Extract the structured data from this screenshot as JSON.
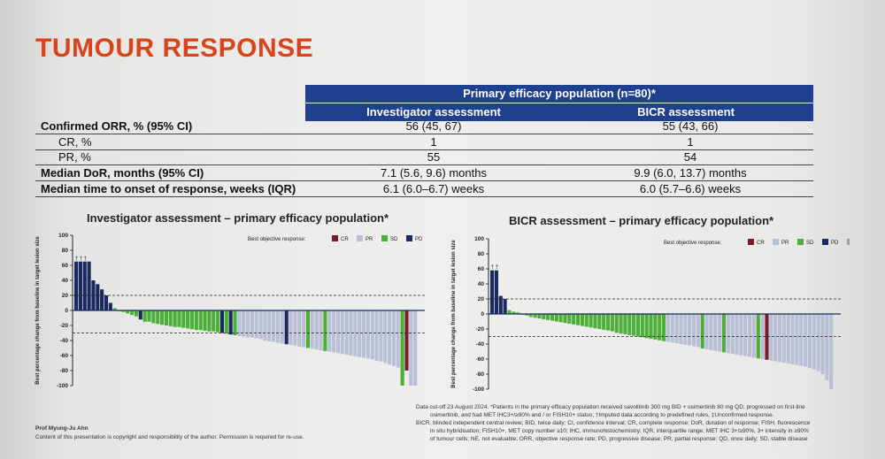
{
  "slide": {
    "title": "TUMOUR RESPONSE",
    "presenter": "Prof Myung-Ju Ahn",
    "copyright": "Content of this presentation is copyright and responsibility of the author. Permission is required for re-use."
  },
  "table": {
    "header": "Primary efficacy population (n=80)*",
    "col1": "Investigator assessment",
    "col2": "BICR assessment",
    "rows": [
      {
        "label": "Confirmed ORR, % (95% CI)",
        "v1": "56 (45, 67)",
        "v2": "55 (43, 66)"
      },
      {
        "label": "CR, %",
        "v1": "1",
        "v2": "1"
      },
      {
        "label": "PR, %",
        "v1": "55",
        "v2": "54"
      },
      {
        "label": "Median DoR, months (95% CI)",
        "v1": "7.1 (5.6, 9.6) months",
        "v2": "9.9 (6.0, 13.7) months"
      },
      {
        "label": "Median time to onset of response, weeks (IQR)",
        "v1": "6.1 (6.0–6.7) weeks",
        "v2": "6.0 (5.7–6.6) weeks"
      }
    ]
  },
  "colors": {
    "CR": "#7a1b2a",
    "PR": "#b9c0d6",
    "SD": "#4caf3a",
    "PD": "#1b2a5e",
    "NE": "#9aa0a8",
    "title": "#d9441b",
    "header": "#1f3f8f"
  },
  "footnote": [
    "Data cut-off 23 August 2024. *Patients in the primary efficacy population received savolitinib 300 mg BID + osimertinib 80 mg QD, progressed on first-line",
    "osimertinib, and had MET IHC3+/≥90% and / or FISH10+ status; †Imputed data according to predefined rules, ‡Unconfirmed response.",
    "BICR, blinded independent central review; BID, twice daily; CI, confidence interval; CR, complete response; DoR, duration of response; FISH, fluorescence",
    "in situ hybridisation; FISH10+, MET copy number ≥10; IHC, immunohistochemistry; IQR, interquartile range; MET IHC 3+/≥90%, 3+ intensity in ≥90%",
    "of tumour cells; NE, not evaluable; ORR, objective response rate; PD, progressive disease; PR, partial response; QD, once daily; SD, stable disease"
  ],
  "chart_data": [
    {
      "type": "bar",
      "title": "Investigator assessment – primary efficacy population*",
      "ylabel": "Best percentage change from baseline in target lesion size",
      "ylim": [
        -100,
        100
      ],
      "yticks": [
        100,
        80,
        60,
        40,
        20,
        0,
        -20,
        -40,
        -60,
        -80,
        -100
      ],
      "reference_lines": [
        20,
        -30
      ],
      "legend_title": "Best objective response:",
      "legend": [
        "CR",
        "PR",
        "SD",
        "PD"
      ],
      "values": [
        65,
        65,
        65,
        65,
        40,
        35,
        28,
        20,
        10,
        3,
        0,
        -2,
        -4,
        -6,
        -8,
        -12,
        -15,
        -15,
        -17,
        -18,
        -19,
        -20,
        -21,
        -22,
        -22,
        -23,
        -24,
        -25,
        -26,
        -26,
        -27,
        -28,
        -28,
        -29,
        -30,
        -31,
        -32,
        -33,
        -34,
        -35,
        -36,
        -36,
        -37,
        -38,
        -40,
        -41,
        -42,
        -43,
        -44,
        -45,
        -46,
        -47,
        -48,
        -49,
        -50,
        -51,
        -52,
        -53,
        -54,
        -55,
        -56,
        -57,
        -58,
        -59,
        -60,
        -61,
        -62,
        -63,
        -64,
        -65,
        -67,
        -68,
        -70,
        -72,
        -74,
        -76,
        -100,
        -80,
        -100,
        -100
      ],
      "categories": [
        "PD",
        "PD",
        "PD",
        "PD",
        "PD",
        "PD",
        "PD",
        "PD",
        "PD",
        "SD",
        "SD",
        "SD",
        "SD",
        "SD",
        "SD",
        "PD",
        "SD",
        "SD",
        "SD",
        "SD",
        "SD",
        "SD",
        "SD",
        "SD",
        "SD",
        "SD",
        "SD",
        "SD",
        "SD",
        "SD",
        "SD",
        "SD",
        "SD",
        "SD",
        "PD",
        "SD",
        "PD",
        "SD",
        "PR",
        "PR",
        "PR",
        "PR",
        "PR",
        "PR",
        "PR",
        "PR",
        "PR",
        "PR",
        "PR",
        "PD",
        "PR",
        "PR",
        "PR",
        "PR",
        "SD",
        "PR",
        "PR",
        "PR",
        "SD",
        "PR",
        "PR",
        "PR",
        "PR",
        "PR",
        "PR",
        "PR",
        "PR",
        "PR",
        "PR",
        "PR",
        "PR",
        "PR",
        "PR",
        "PR",
        "PR",
        "PR",
        "SD",
        "CR",
        "PR",
        "PR"
      ],
      "markers": [
        "†",
        "†",
        "†",
        "‡",
        "‡",
        "‡",
        "‡"
      ]
    },
    {
      "type": "bar",
      "title": "BICR assessment – primary efficacy population*",
      "ylabel": "Best percentage change from baseline in target lesion size",
      "ylim": [
        -100,
        100
      ],
      "yticks": [
        100,
        80,
        60,
        40,
        20,
        0,
        -20,
        -40,
        -60,
        -80,
        -100
      ],
      "reference_lines": [
        20,
        -30
      ],
      "legend_title": "Best objective response:",
      "legend": [
        "CR",
        "PR",
        "SD",
        "PD",
        "NE"
      ],
      "values": [
        58,
        58,
        24,
        20,
        5,
        3,
        2,
        -1,
        -2,
        -4,
        -5,
        -6,
        -7,
        -8,
        -9,
        -10,
        -11,
        -12,
        -13,
        -14,
        -15,
        -16,
        -17,
        -18,
        -19,
        -20,
        -21,
        -22,
        -23,
        -25,
        -26,
        -27,
        -28,
        -29,
        -30,
        -31,
        -32,
        -33,
        -34,
        -35,
        -36,
        -37,
        -38,
        -39,
        -40,
        -41,
        -42,
        -43,
        -44,
        -46,
        -47,
        -48,
        -49,
        -50,
        -51,
        -52,
        -53,
        -54,
        -55,
        -56,
        -57,
        -58,
        -59,
        -60,
        -61,
        -62,
        -63,
        -64,
        -65,
        -66,
        -67,
        -68,
        -69,
        -70,
        -72,
        -74,
        -76,
        -80,
        -88,
        -100
      ],
      "categories": [
        "PD",
        "PD",
        "PD",
        "PD",
        "SD",
        "SD",
        "SD",
        "SD",
        "SD",
        "SD",
        "SD",
        "SD",
        "SD",
        "SD",
        "SD",
        "SD",
        "SD",
        "SD",
        "SD",
        "SD",
        "SD",
        "SD",
        "SD",
        "SD",
        "SD",
        "SD",
        "SD",
        "SD",
        "SD",
        "SD",
        "SD",
        "SD",
        "SD",
        "SD",
        "SD",
        "SD",
        "SD",
        "SD",
        "SD",
        "SD",
        "SD",
        "PR",
        "PR",
        "PR",
        "PR",
        "PR",
        "PR",
        "PR",
        "PR",
        "SD",
        "PR",
        "PR",
        "PR",
        "PR",
        "SD",
        "PR",
        "PR",
        "PR",
        "PR",
        "PR",
        "PR",
        "PR",
        "SD",
        "PR",
        "CR",
        "PR",
        "PR",
        "PR",
        "PR",
        "PR",
        "PR",
        "PR",
        "PR",
        "PR",
        "PR",
        "PR",
        "PR",
        "PR",
        "PR",
        "PR"
      ],
      "markers": [
        "†",
        "†",
        "‡",
        "‡",
        "‡",
        "‡"
      ]
    }
  ]
}
